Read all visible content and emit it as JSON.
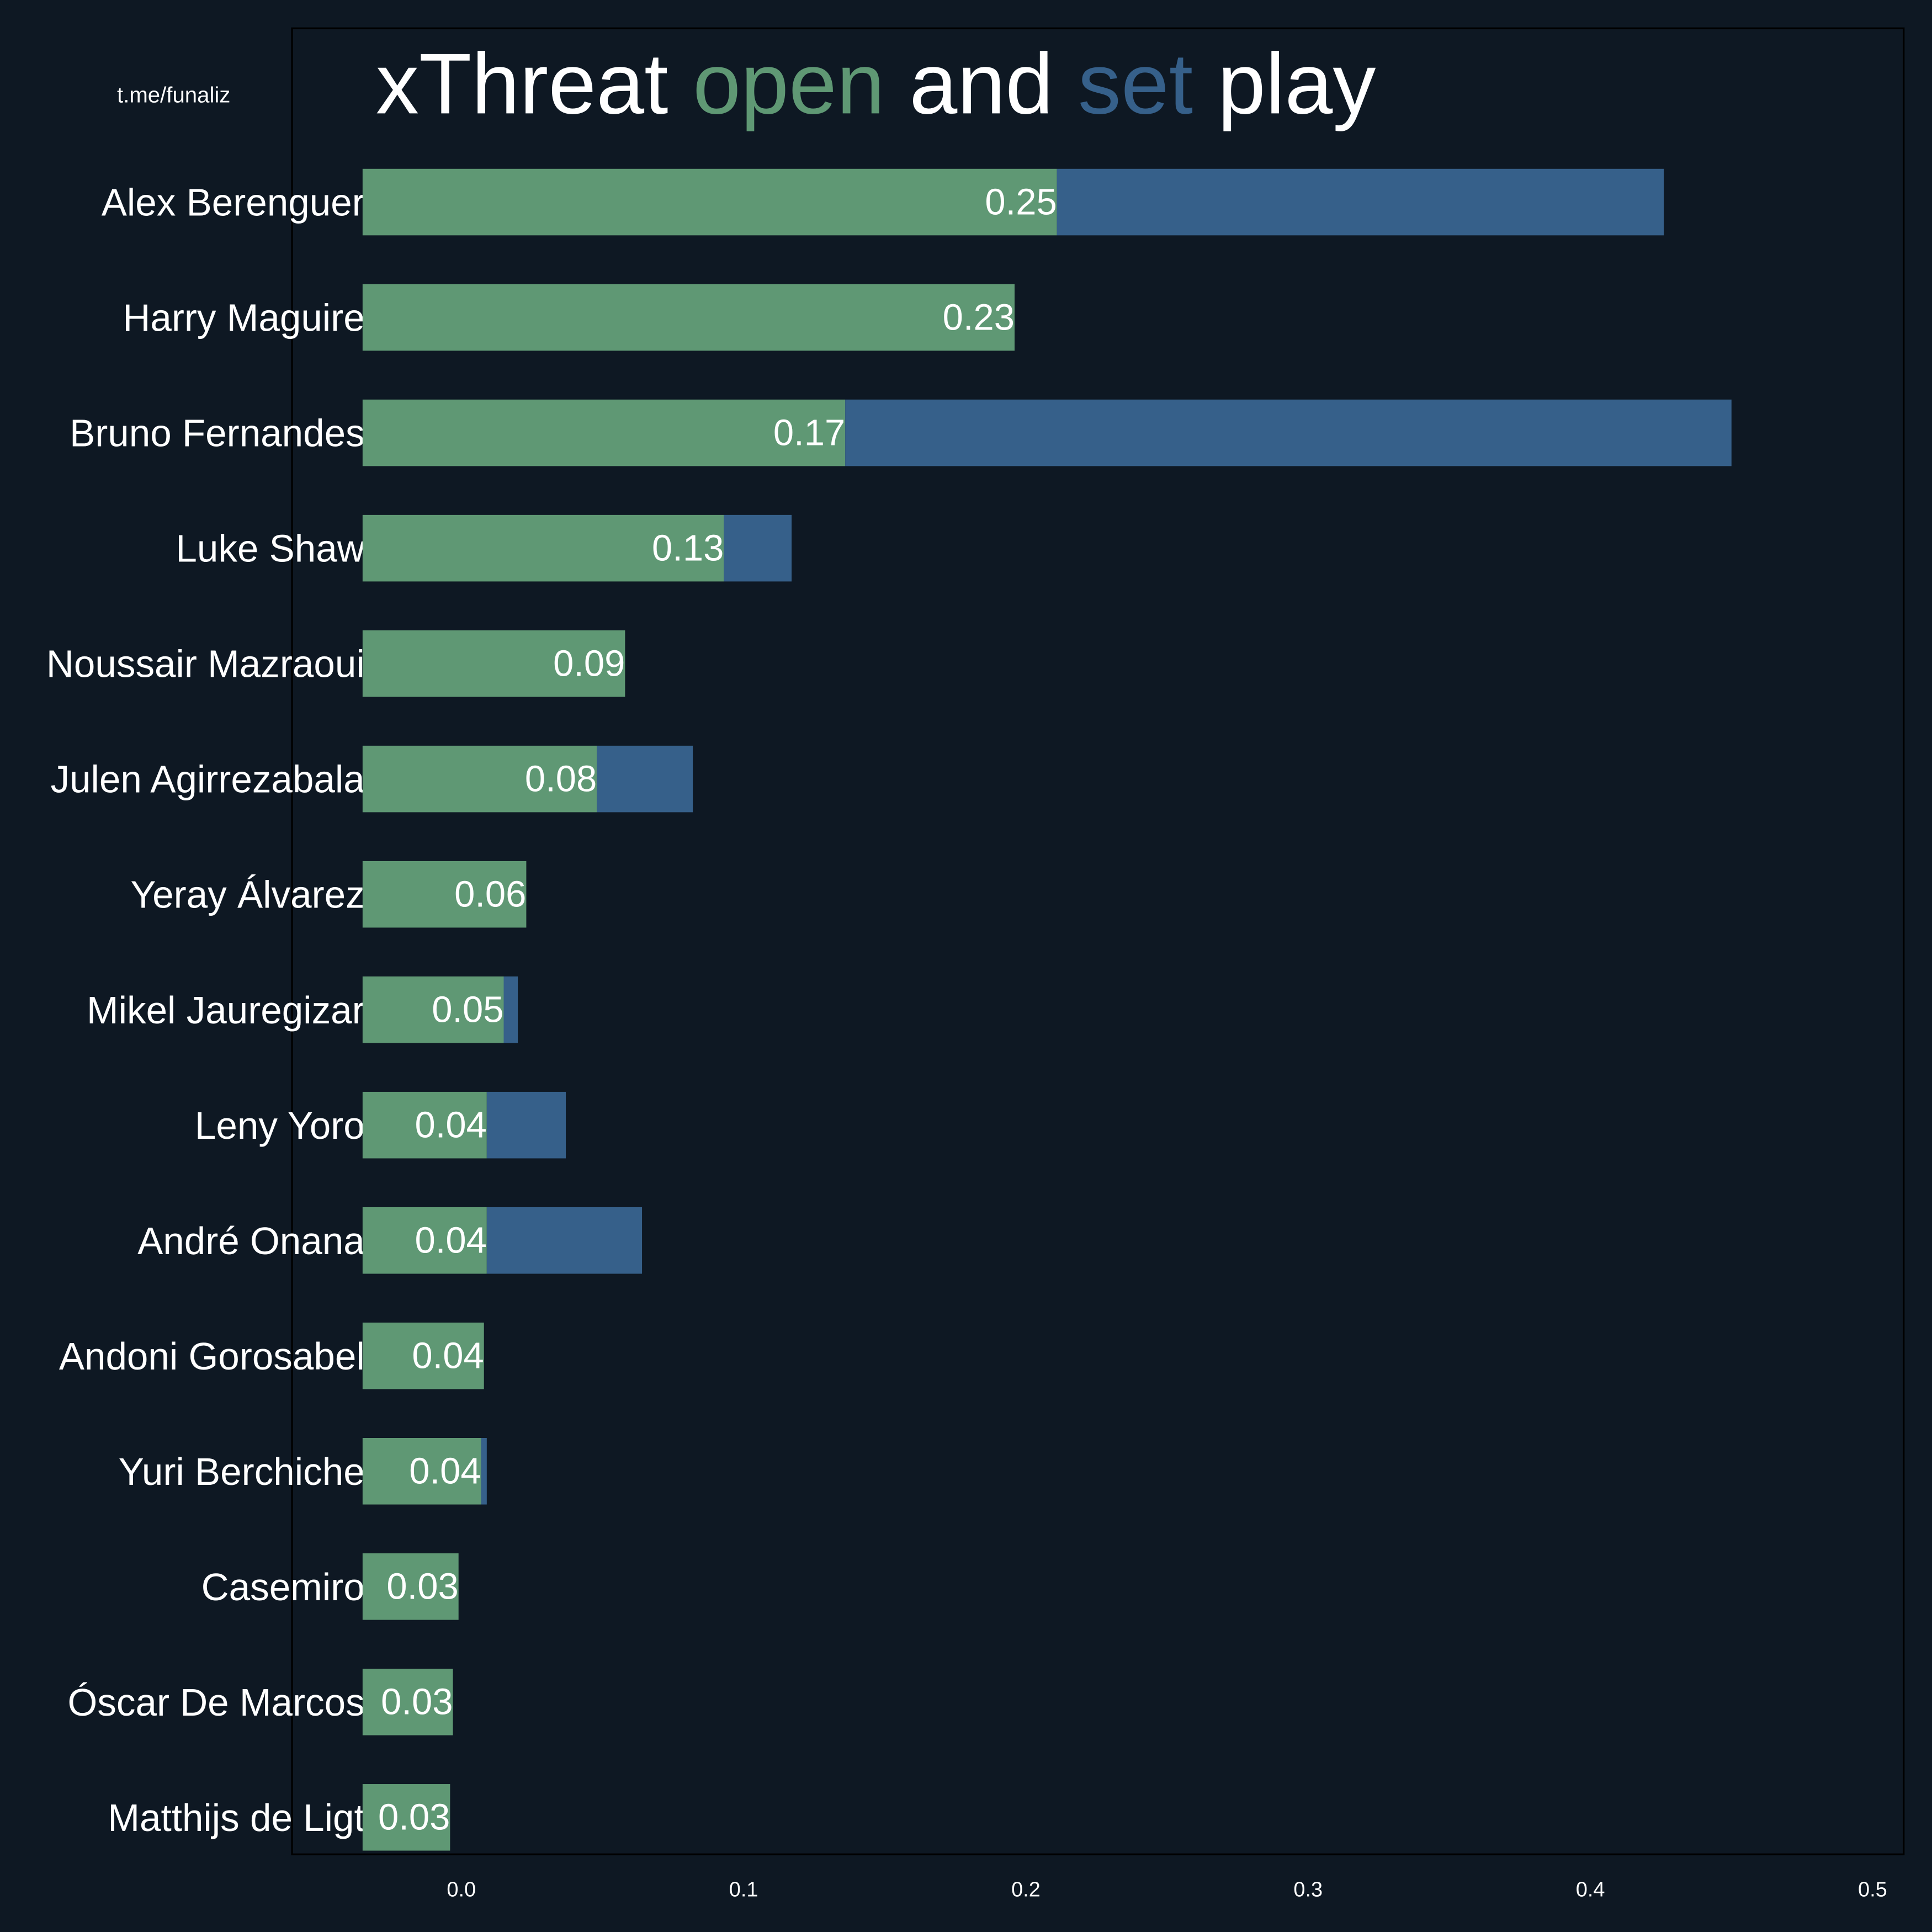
{
  "chart_data": {
    "type": "stacked-barh",
    "title_parts": [
      {
        "text": "xThreat",
        "color": "#ffffff"
      },
      {
        "text": "open",
        "color": "#5f9874"
      },
      {
        "text": "and",
        "color": "#ffffff"
      },
      {
        "text": "set",
        "color": "#36608a"
      },
      {
        "text": "play",
        "color": "#ffffff"
      }
    ],
    "watermark": "t.me/funaliz",
    "categories": [
      "Alex Berenguer",
      "Harry Maguire",
      "Bruno Fernandes",
      "Luke Shaw",
      "Noussair Mazraoui",
      "Julen Agirrezabala",
      "Yeray Álvarez",
      "Mikel Jauregizar",
      "Leny Yoro",
      "André Onana",
      "Andoni Gorosabel",
      "Yuri Berchiche",
      "Casemiro",
      "Óscar De Marcos",
      "Matthijs de Ligt"
    ],
    "bar_start": -0.035,
    "series": [
      {
        "name": "open",
        "color": "#5f9874",
        "values": [
          0.246,
          0.231,
          0.171,
          0.128,
          0.093,
          0.083,
          0.058,
          0.05,
          0.044,
          0.044,
          0.043,
          0.042,
          0.034,
          0.032,
          0.031
        ],
        "value_labels": [
          "0.25",
          "0.23",
          "0.17",
          "0.13",
          "0.09",
          "0.08",
          "0.06",
          "0.05",
          "0.04",
          "0.04",
          "0.04",
          "0.04",
          "0.03",
          "0.03",
          "0.03"
        ]
      },
      {
        "name": "set",
        "color": "#36608a",
        "values": [
          0.215,
          0,
          0.314,
          0.024,
          0,
          0.034,
          0,
          0.005,
          0.028,
          0.055,
          0,
          0.002,
          0,
          0,
          0
        ]
      }
    ],
    "xlim": [
      -0.06,
      0.511
    ],
    "xticks": [
      {
        "value": 0,
        "label": "0.0"
      },
      0.1,
      0.2,
      0.3,
      0.4,
      0.5
    ]
  }
}
